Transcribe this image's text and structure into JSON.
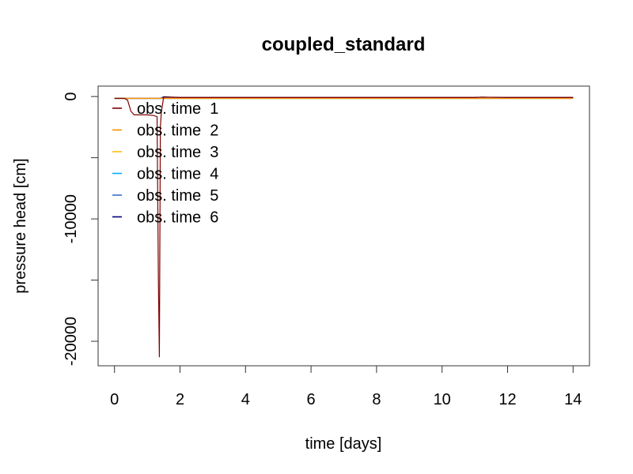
{
  "chart_data": {
    "type": "line",
    "title": "coupled_standard",
    "xlabel": "time [days]",
    "ylabel": "pressure head [cm]",
    "xlim": [
      -0.5,
      14.5
    ],
    "ylim": [
      -22000,
      850
    ],
    "xticks": [
      0,
      2,
      4,
      6,
      8,
      10,
      12,
      14
    ],
    "yticks": [
      0,
      -5000,
      -10000,
      -15000,
      -20000
    ],
    "ytick_labels": [
      "0",
      "",
      "-10000",
      "",
      "-20000"
    ],
    "legend_position": "top-left",
    "grid": false,
    "series": [
      {
        "name": "obs. time  1",
        "color": "#7f0000",
        "x": [
          0,
          0.3,
          0.4,
          0.5,
          0.6,
          0.8,
          1.0,
          1.2,
          1.3,
          1.34,
          1.37,
          1.4,
          1.43,
          1.5,
          2,
          3,
          4,
          6,
          8,
          10,
          11,
          11.2,
          12,
          14
        ],
        "y": [
          -150,
          -150,
          -300,
          -1200,
          -1500,
          -1500,
          -1500,
          -1550,
          -1650,
          -15000,
          -21300,
          -2500,
          -1300,
          -50,
          -80,
          -80,
          -80,
          -80,
          -80,
          -80,
          -80,
          -50,
          -80,
          -80
        ]
      },
      {
        "name": "obs. time  2",
        "color": "#ff8c00",
        "x": [
          0,
          1.5,
          14
        ],
        "y": [
          -150,
          -150,
          -150
        ]
      },
      {
        "name": "obs. time  3",
        "color": "#ffc000",
        "x": [
          0,
          1.5,
          14
        ],
        "y": [
          -150,
          -150,
          -150
        ]
      },
      {
        "name": "obs. time  4",
        "color": "#00b0ff",
        "x": [
          0,
          1.5,
          14
        ],
        "y": [
          -150,
          -150,
          -150
        ]
      },
      {
        "name": "obs. time  5",
        "color": "#3a6ec8",
        "x": [
          0,
          1.5,
          14
        ],
        "y": [
          -150,
          -150,
          -150
        ]
      },
      {
        "name": "obs. time  6",
        "color": "#000080",
        "x": [
          0,
          1.4,
          1.5,
          2,
          4,
          6,
          8,
          10,
          11,
          11.2,
          12,
          14
        ],
        "y": [
          -150,
          -150,
          -20,
          -80,
          -80,
          -80,
          -80,
          -80,
          -80,
          -50,
          -80,
          -80
        ]
      }
    ]
  }
}
